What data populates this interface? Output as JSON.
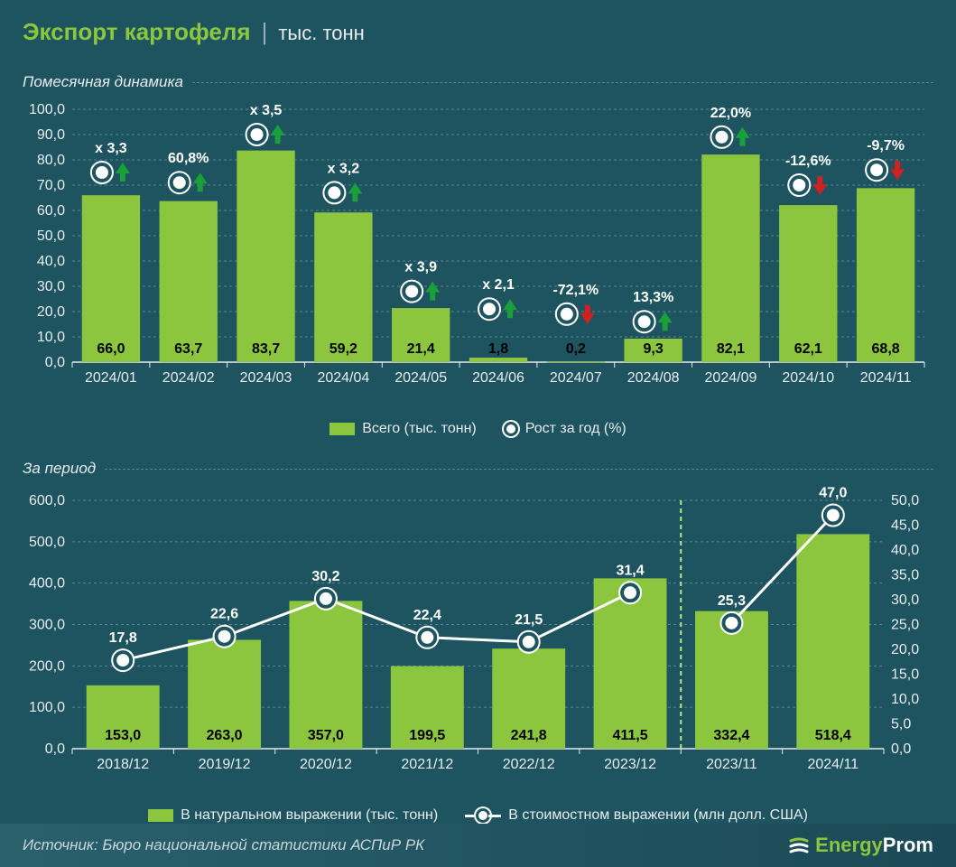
{
  "header": {
    "title": "Экспорт картофеля",
    "unit": "тыс. тонн"
  },
  "chart1": {
    "type": "bar",
    "section_label": "Помесячная динамика",
    "ylim": [
      0,
      100
    ],
    "ytick_step": 10,
    "bar_color": "#8cc63f",
    "marker_fill": "#ffffff",
    "marker_ring_dark": "#1d5460",
    "up_arrow_color": "#1aa03a",
    "down_arrow_color": "#d12020",
    "grid_color": "#5a8591",
    "background_color": "#1d5460",
    "categories": [
      "2024/01",
      "2024/02",
      "2024/03",
      "2024/04",
      "2024/05",
      "2024/06",
      "2024/07",
      "2024/08",
      "2024/09",
      "2024/10",
      "2024/11"
    ],
    "values": [
      66.0,
      63.7,
      83.7,
      59.2,
      21.4,
      1.8,
      0.2,
      9.3,
      82.1,
      62.1,
      68.8
    ],
    "value_labels": [
      "66,0",
      "63,7",
      "83,7",
      "59,2",
      "21,4",
      "1,8",
      "0,2",
      "9,3",
      "82,1",
      "62,1",
      "68,8"
    ],
    "growth_marker_y": [
      75,
      71,
      90,
      67,
      28,
      21,
      19,
      16,
      89,
      70,
      76
    ],
    "growth_labels": [
      "x 3,3",
      "60,8%",
      "x 3,5",
      "x 3,2",
      "x 3,9",
      "x 2,1",
      "-72,1%",
      "13,3%",
      "22,0%",
      "-12,6%",
      "-9,7%"
    ],
    "growth_dir": [
      "up",
      "up",
      "up",
      "up",
      "up",
      "up",
      "down",
      "up",
      "up",
      "down",
      "down"
    ],
    "legend": {
      "bars": "Всего (тыс. тонн)",
      "markers": "Рост за год (%)"
    }
  },
  "chart2": {
    "type": "bar+line",
    "section_label": "За период",
    "ylim_left": [
      0,
      600
    ],
    "ytick_left_step": 100,
    "ylim_right": [
      0,
      50
    ],
    "ytick_right_step": 5,
    "bar_color": "#8cc63f",
    "line_color": "#ffffff",
    "marker_fill": "#ffffff",
    "grid_color": "#5a8591",
    "divider_color": "#b8e88a",
    "categories": [
      "2018/12",
      "2019/12",
      "2020/12",
      "2021/12",
      "2022/12",
      "2023/12",
      "2023/11",
      "2024/11"
    ],
    "bar_values": [
      153.0,
      263.0,
      357.0,
      199.5,
      241.8,
      411.5,
      332.4,
      518.4
    ],
    "bar_labels": [
      "153,0",
      "263,0",
      "357,0",
      "199,5",
      "241,8",
      "411,5",
      "332,4",
      "518,4"
    ],
    "line_values": [
      17.8,
      22.6,
      30.2,
      22.4,
      21.5,
      31.4,
      25.3,
      47.0
    ],
    "line_labels": [
      "17,8",
      "22,6",
      "30,2",
      "22,4",
      "21,5",
      "31,4",
      "25,3",
      "47,0"
    ],
    "divider_after_index": 5,
    "legend": {
      "bars": "В натуральном выражении (тыс. тонн)",
      "line": "В стоимостном выражении (млн долл. США)"
    }
  },
  "footer": {
    "source": "Источник: Бюро национальной статистики АСПиР РК",
    "brand_left": "Energy",
    "brand_right": "Prom"
  },
  "colors": {
    "bg": "#1d5460",
    "accent": "#8cc63f",
    "text": "#e8edef"
  }
}
